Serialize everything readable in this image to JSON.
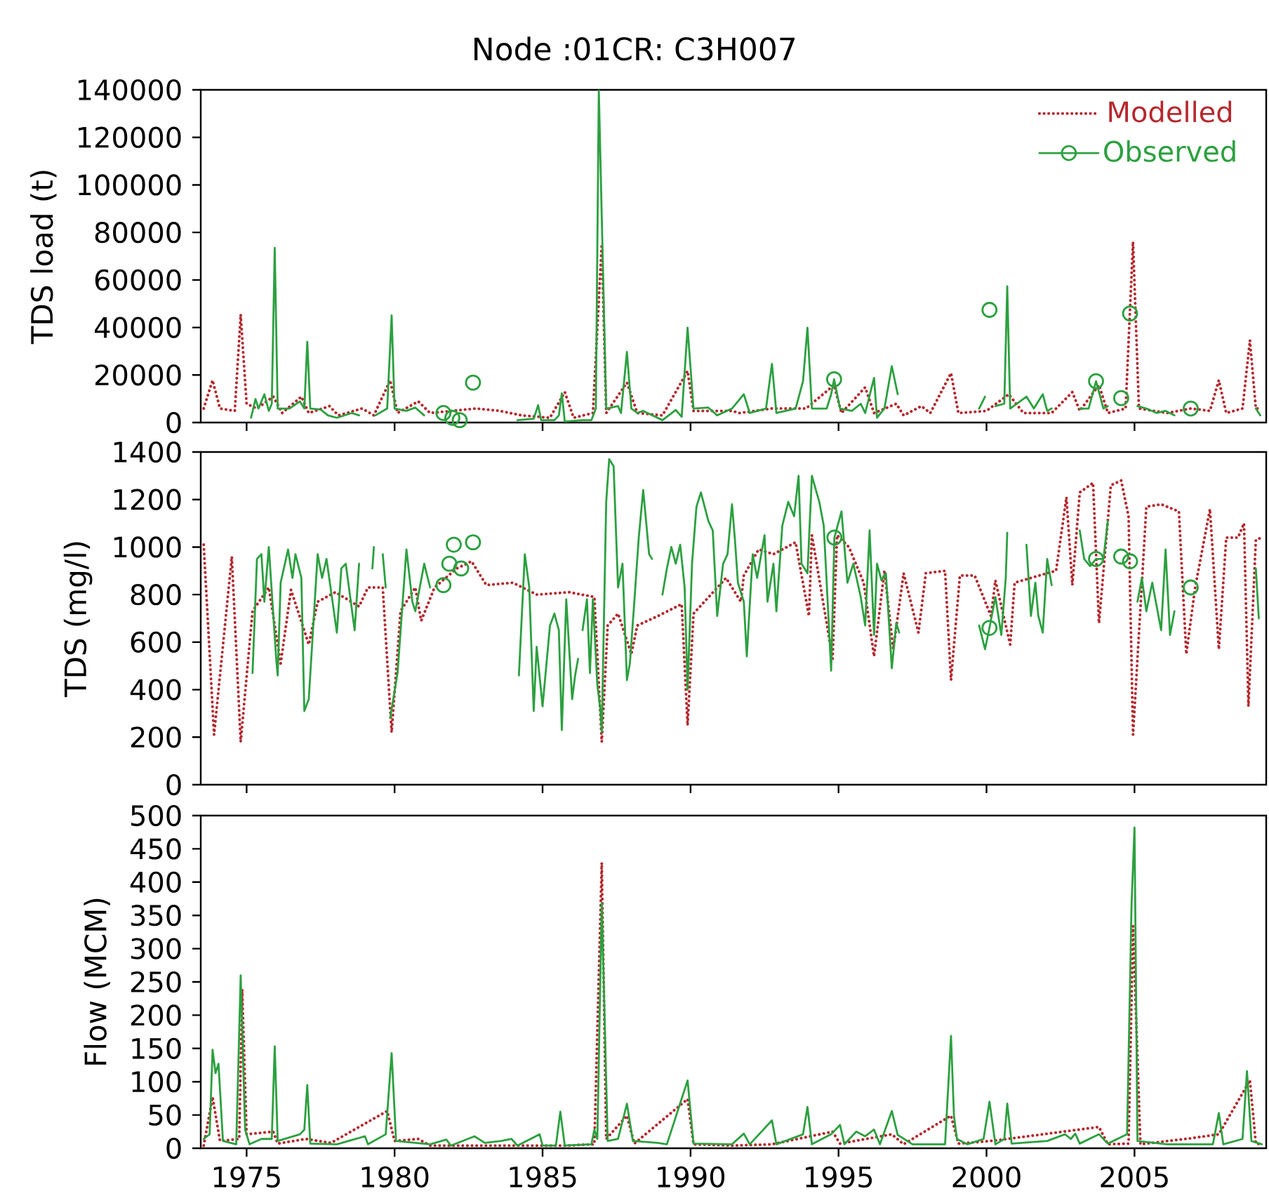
{
  "chart_data": [
    {
      "type": "line",
      "title": "Node :01CR: C3H007",
      "ylabel": "TDS load (t)",
      "xlim": [
        1973.45,
        2009.45
      ],
      "ylim": [
        0,
        140000
      ],
      "xticks": [
        1975,
        1980,
        1985,
        1990,
        1995,
        2000,
        2005
      ],
      "yticks": [
        0,
        20000,
        40000,
        60000,
        80000,
        100000,
        120000,
        140000
      ],
      "tick_labels": "y",
      "legend": "top right",
      "series": [
        {
          "name": "Modelled",
          "color": "#b5282e",
          "line_style": "dotted",
          "x": [
            1973.55,
            1973.85,
            1974.1,
            1974.6,
            1974.8,
            1975.0,
            1975.35,
            1975.9,
            1976.2,
            1976.85,
            1977.1,
            1977.8,
            1978.1,
            1978.9,
            1979.3,
            1979.85,
            1980.1,
            1980.8,
            1981.2,
            1982.75,
            1983.55,
            1984.3,
            1985.25,
            1985.75,
            1986.05,
            1986.7,
            1987.0,
            1987.15,
            1987.85,
            1988.2,
            1989.05,
            1989.9,
            1990.1,
            1991.4,
            1991.65,
            1992.75,
            1993.9,
            1994.85,
            1995.1,
            1995.9,
            1996.2,
            1996.95,
            1997.2,
            1997.8,
            1998.1,
            1998.8,
            1999.05,
            2000.0,
            2000.75,
            2001.25,
            2002.2,
            2002.9,
            2003.15,
            2003.8,
            2004.1,
            2004.7,
            2004.95,
            2005.15,
            2006.1,
            2006.9,
            2007.55,
            2007.85,
            2008.1,
            2008.65,
            2008.9,
            2009.1,
            2009.3
          ],
          "values": [
            5900,
            17800,
            5900,
            4900,
            45500,
            7900,
            5900,
            10900,
            4000,
            10900,
            4000,
            6900,
            3000,
            5900,
            3000,
            17800,
            4000,
            8900,
            4000,
            5900,
            4900,
            3000,
            2000,
            12800,
            2000,
            4000,
            75000,
            4000,
            16800,
            4000,
            3000,
            21700,
            4900,
            4900,
            4000,
            5900,
            5900,
            15800,
            4000,
            14800,
            4000,
            7900,
            3000,
            6900,
            4000,
            20800,
            4000,
            4900,
            11900,
            4000,
            4000,
            12800,
            4900,
            15800,
            4000,
            5900,
            76100,
            5900,
            4000,
            5900,
            4900,
            17800,
            4000,
            5900,
            34600,
            5900,
            5900
          ]
        },
        {
          "name": "Observed",
          "color": "#2ca040",
          "line_style": "solid",
          "x": [
            1975.15,
            1975.3,
            1975.4,
            1975.6,
            1975.75,
            1975.85,
            1975.95,
            1976.05,
            1976.45,
            1976.8,
            1976.95,
            1977.05,
            1977.15,
            1977.5,
            1977.75,
            1978.05,
            1978.55,
            1978.8,
            1979.1,
            1979.35,
            1979.75,
            1979.9,
            1980.0,
            1980.4,
            1980.7,
            1981.0,
            1981.3,
            1981.65,
            1981.8,
            1981.95,
            1982.07,
            1982.2,
            1982.45,
            1982.65,
            1983.5,
            1984.15,
            1984.7,
            1984.85,
            1984.95,
            1985.4,
            1985.55,
            1985.65,
            1985.75,
            1986.35,
            1986.65,
            1986.8,
            1986.9,
            1987.15,
            1987.55,
            1987.65,
            1987.85,
            1988.0,
            1988.2,
            1988.4,
            1989.05,
            1989.5,
            1989.7,
            1989.9,
            1990.1,
            1990.6,
            1990.9,
            1991.4,
            1991.8,
            1992.0,
            1992.55,
            1992.75,
            1992.9,
            1993.55,
            1993.8,
            1993.95,
            1994.1,
            1994.6,
            1994.75,
            1994.85,
            1995.05,
            1995.45,
            1995.75,
            1995.9,
            1996.2,
            1996.3,
            1996.55,
            1996.8,
            1997.0,
            1998.0,
            1999.75,
            1999.95,
            2000.02,
            2000.1,
            2000.2,
            2000.3,
            2000.6,
            2000.7,
            2000.8,
            2001.35,
            2001.6,
            2001.9,
            2002.05,
            2002.2,
            2002.7,
            2003.15,
            2003.45,
            2003.7,
            2003.95,
            2004.1,
            2004.3,
            2004.55,
            2004.7,
            2004.85,
            2004.97,
            2005.1,
            2005.4,
            2005.75,
            2006.05,
            2006.35,
            2006.6,
            2006.9,
            2008.0,
            2009.1,
            2009.25
          ],
          "values": [
            2000,
            9900,
            5900,
            11900,
            4900,
            7900,
            73500,
            5900,
            5900,
            8900,
            5900,
            34000,
            5900,
            5500,
            3000,
            2000,
            4000,
            3000,
            null,
            3000,
            5900,
            45100,
            5900,
            4900,
            6300,
            3000,
            null,
            null,
            null,
            null,
            null,
            null,
            null,
            null,
            null,
            1000,
            1600,
            7300,
            1000,
            1000,
            3000,
            12300,
            400,
            1000,
            1000,
            5900,
            140000,
            5900,
            6900,
            4000,
            29700,
            5900,
            4000,
            4900,
            1000,
            5300,
            2400,
            39900,
            5900,
            6300,
            3000,
            5900,
            11900,
            4000,
            5900,
            24700,
            4000,
            5900,
            17400,
            39900,
            5900,
            5900,
            11900,
            18200,
            5900,
            4900,
            7900,
            4000,
            18800,
            2000,
            5900,
            23700,
            11900,
            null,
            5900,
            10900,
            null,
            null,
            null,
            6900,
            7900,
            57300,
            5900,
            10900,
            5900,
            11900,
            4900,
            5900,
            null,
            5900,
            5900,
            17400,
            5900,
            6900,
            null,
            null,
            null,
            null,
            null,
            6900,
            5900,
            4000,
            4900,
            3000,
            null,
            null,
            null,
            5900,
            3000
          ]
        },
        {
          "type": "scatter",
          "color": "#2ca040",
          "marker": "circle",
          "x": [
            1981.65,
            1981.95,
            1982.2,
            1982.65,
            1994.85,
            2000.1,
            2003.7,
            2004.55,
            2004.85,
            2006.9
          ],
          "values": [
            4000,
            2000,
            1000,
            16800,
            18200,
            47400,
            17400,
            10300,
            45900,
            5900
          ]
        }
      ]
    },
    {
      "type": "line",
      "ylabel": "TDS (mg/l)",
      "xlim": [
        1973.45,
        2009.45
      ],
      "ylim": [
        0,
        1400
      ],
      "xticks": [
        1975,
        1980,
        1985,
        1990,
        1995,
        2000,
        2005
      ],
      "yticks": [
        0,
        200,
        400,
        600,
        800,
        1000,
        1200,
        1400
      ],
      "tick_labels": "y",
      "series": [
        {
          "color": "#b5282e",
          "line_style": "dotted",
          "x": [
            1973.55,
            1973.9,
            1974.5,
            1974.8,
            1975.2,
            1975.75,
            1976.15,
            1976.5,
            1977.1,
            1977.4,
            1978.0,
            1978.8,
            1979.1,
            1979.6,
            1979.9,
            1980.2,
            1980.7,
            1980.9,
            1981.35,
            1982.1,
            1982.6,
            1983.1,
            1984.0,
            1984.8,
            1985.9,
            1986.75,
            1987.0,
            1987.2,
            1987.55,
            1988.0,
            1988.2,
            1988.9,
            1989.7,
            1989.9,
            1990.1,
            1991.2,
            1991.7,
            1991.8,
            1992.3,
            1992.8,
            1993.55,
            1994.0,
            1994.1,
            1994.8,
            1994.95,
            1995.35,
            1995.85,
            1996.2,
            1996.55,
            1996.85,
            1997.2,
            1997.7,
            1997.95,
            1998.6,
            1998.8,
            1999.1,
            1999.6,
            2000.15,
            2000.3,
            2000.8,
            2000.95,
            2002.05,
            2002.35,
            2002.7,
            2002.9,
            2003.15,
            2003.6,
            2003.8,
            2004.2,
            2004.55,
            2004.8,
            2004.95,
            2005.4,
            2005.9,
            2006.5,
            2006.75,
            2007.05,
            2007.55,
            2007.85,
            2008.1,
            2008.5,
            2008.7,
            2008.85,
            2009.1,
            2009.3
          ],
          "values": [
            1010,
            210,
            960,
            180,
            730,
            830,
            510,
            820,
            590,
            770,
            810,
            750,
            830,
            830,
            220,
            730,
            830,
            690,
            830,
            910,
            940,
            840,
            850,
            800,
            810,
            790,
            180,
            670,
            720,
            550,
            670,
            710,
            760,
            250,
            720,
            870,
            770,
            880,
            990,
            970,
            1020,
            710,
            1050,
            530,
            1050,
            1000,
            850,
            540,
            900,
            570,
            890,
            640,
            890,
            900,
            440,
            880,
            880,
            710,
            860,
            590,
            850,
            890,
            900,
            1210,
            840,
            1230,
            1270,
            680,
            1260,
            1280,
            1130,
            210,
            1170,
            1180,
            1150,
            550,
            830,
            1160,
            570,
            1040,
            1040,
            1100,
            330,
            1030,
            1040
          ]
        },
        {
          "color": "#2ca040",
          "line_style": "solid",
          "x": [
            1975.2,
            1975.35,
            1975.5,
            1975.6,
            1975.75,
            1976.0,
            1976.05,
            1976.15,
            1976.4,
            1976.55,
            1976.65,
            1976.85,
            1976.95,
            1977.1,
            1977.4,
            1977.55,
            1977.7,
            1978.05,
            1978.2,
            1978.35,
            1978.65,
            1978.8,
            1979.0,
            1979.25,
            1979.3,
            1979.5,
            1979.6,
            1979.7,
            1979.78,
            1979.85,
            1980.1,
            1980.4,
            1980.6,
            1980.7,
            1981.0,
            1981.2,
            1981.4,
            1981.65,
            1981.75,
            1981.85,
            1981.92,
            1982.0,
            1982.12,
            1982.25,
            1982.45,
            1982.65,
            1983.0,
            1984.2,
            1984.4,
            1984.55,
            1984.7,
            1984.8,
            1985.0,
            1985.25,
            1985.4,
            1985.55,
            1985.65,
            1985.8,
            1986.0,
            1986.1,
            1986.2,
            1986.28,
            1986.35,
            1986.5,
            1986.6,
            1986.7,
            1986.85,
            1986.95,
            1987.0,
            1987.15,
            1987.25,
            1987.4,
            1987.55,
            1987.7,
            1987.85,
            1987.95,
            1988.1,
            1988.25,
            1988.4,
            1988.6,
            1988.7,
            1988.9,
            1989.05,
            1989.2,
            1989.35,
            1989.5,
            1989.65,
            1989.8,
            1989.9,
            1990.05,
            1990.2,
            1990.35,
            1990.6,
            1990.75,
            1990.9,
            1991.1,
            1991.25,
            1991.4,
            1991.5,
            1991.6,
            1991.8,
            1991.9,
            1992.1,
            1992.25,
            1992.5,
            1992.6,
            1992.8,
            1992.9,
            1993.1,
            1993.3,
            1993.5,
            1993.65,
            1993.75,
            1993.95,
            1994.1,
            1994.35,
            1994.5,
            1994.6,
            1994.75,
            1994.86,
            1995.1,
            1995.3,
            1995.5,
            1995.75,
            1995.9,
            1996.05,
            1996.2,
            1996.3,
            1996.45,
            1996.6,
            1996.8,
            1996.95,
            1997.05,
            1998.0,
            1999.75,
            1999.95,
            2000.1,
            2000.3,
            2000.5,
            2000.65,
            2000.7,
            2001.0,
            2001.35,
            2001.5,
            2001.65,
            2001.75,
            2001.9,
            2002.05,
            2002.2,
            2002.7,
            2003.15,
            2003.3,
            2003.5,
            2003.7,
            2003.95,
            2004.1,
            2004.3,
            2004.55,
            2004.7,
            2004.85,
            2004.97,
            2005.1,
            2005.25,
            2005.4,
            2005.6,
            2005.75,
            2005.9,
            2006.05,
            2006.2,
            2006.35,
            2006.6,
            2006.9,
            2008.0,
            2009.1,
            2009.2
          ],
          "values": [
            470,
            950,
            970,
            770,
            1000,
            530,
            460,
            850,
            990,
            870,
            970,
            870,
            310,
            360,
            970,
            870,
            950,
            640,
            910,
            930,
            650,
            930,
            null,
            910,
            1000,
            null,
            970,
            830,
            null,
            280,
            470,
            990,
            770,
            730,
            930,
            830,
            null,
            null,
            null,
            null,
            null,
            null,
            null,
            null,
            null,
            null,
            null,
            460,
            970,
            830,
            310,
            580,
            330,
            670,
            720,
            650,
            230,
            780,
            360,
            460,
            530,
            null,
            650,
            780,
            470,
            780,
            420,
            320,
            220,
            1190,
            1370,
            1340,
            830,
            930,
            440,
            510,
            770,
            1040,
            1240,
            970,
            950,
            null,
            800,
            910,
            1000,
            930,
            1010,
            830,
            400,
            930,
            1170,
            1230,
            1110,
            1070,
            710,
            930,
            970,
            1180,
            1030,
            850,
            770,
            540,
            970,
            870,
            1050,
            770,
            930,
            730,
            1090,
            1190,
            1130,
            1300,
            930,
            890,
            1300,
            1190,
            1090,
            850,
            480,
            1040,
            1150,
            850,
            930,
            790,
            670,
            1070,
            630,
            930,
            860,
            890,
            490,
            680,
            640,
            null,
            670,
            570,
            660,
            790,
            630,
            870,
            1060,
            null,
            1010,
            710,
            850,
            710,
            640,
            950,
            840,
            null,
            1070,
            950,
            920,
            950,
            950,
            1110,
            null,
            null,
            null,
            null,
            null,
            770,
            870,
            730,
            850,
            750,
            650,
            990,
            630,
            730,
            null,
            null,
            null,
            910,
            700
          ]
        },
        {
          "type": "scatter",
          "color": "#2ca040",
          "marker": "circle",
          "x": [
            1981.65,
            1981.85,
            1982.0,
            1982.25,
            1982.65,
            1994.86,
            2000.1,
            2003.7,
            2004.55,
            2004.85,
            2006.9
          ],
          "values": [
            840,
            930,
            1010,
            910,
            1020,
            1040,
            660,
            950,
            960,
            940,
            830
          ]
        }
      ]
    },
    {
      "type": "line",
      "ylabel": "Flow (MCM)",
      "xlim": [
        1973.45,
        2009.45
      ],
      "ylim": [
        0,
        500
      ],
      "xticks": [
        1975,
        1980,
        1985,
        1990,
        1995,
        2000,
        2005
      ],
      "yticks": [
        0,
        50,
        100,
        150,
        200,
        250,
        300,
        350,
        400,
        450,
        500
      ],
      "series": [
        {
          "color": "#b5282e",
          "line_style": "dotted",
          "x": [
            1973.55,
            1973.85,
            1974.1,
            1974.75,
            1974.85,
            1975.0,
            1975.9,
            1976.05,
            1977.0,
            1977.85,
            1979.75,
            1980.0,
            1980.8,
            1981.2,
            1982.75,
            1984.3,
            1985.75,
            1986.75,
            1987.0,
            1987.15,
            1987.85,
            1988.1,
            1989.9,
            1990.1,
            1991.4,
            1992.75,
            1994.8,
            1995.05,
            1996.8,
            1997.2,
            1998.8,
            1999.05,
            2000.15,
            2000.7,
            2003.8,
            2004.1,
            2004.8,
            2004.95,
            2005.2,
            2006.9,
            2007.85,
            2008.9,
            2009.1,
            2009.3
          ],
          "values": [
            4,
            77,
            11,
            14,
            239,
            21,
            25,
            7,
            14,
            8,
            56,
            11,
            14,
            4,
            4,
            4,
            4,
            6,
            429,
            14,
            49,
            7,
            74,
            6,
            4,
            6,
            25,
            7,
            21,
            6,
            49,
            7,
            11,
            14,
            32,
            6,
            7,
            334,
            6,
            15,
            21,
            102,
            7,
            6
          ]
        },
        {
          "color": "#2ca040",
          "line_style": "solid",
          "x": [
            1973.55,
            1973.75,
            1973.85,
            1973.95,
            1974.05,
            1974.2,
            1974.65,
            1974.8,
            1974.95,
            1975.1,
            1975.5,
            1975.85,
            1975.95,
            1976.05,
            1976.8,
            1976.95,
            1977.05,
            1977.15,
            1978.05,
            1979.0,
            1979.1,
            1979.7,
            1979.9,
            1980.05,
            1981.2,
            1981.75,
            1981.9,
            1982.7,
            1983.05,
            1983.6,
            1983.95,
            1984.15,
            1984.9,
            1985.0,
            1985.45,
            1985.6,
            1985.75,
            1986.65,
            1986.75,
            1986.85,
            1987.0,
            1987.2,
            1987.55,
            1987.85,
            1988.05,
            1988.9,
            1989.2,
            1989.9,
            1990.1,
            1991.4,
            1991.8,
            1992.0,
            1992.75,
            1992.9,
            1993.8,
            1993.95,
            1994.1,
            1994.75,
            1995.05,
            1995.2,
            1995.6,
            1995.9,
            1996.2,
            1996.4,
            1996.8,
            1997.0,
            1997.5,
            1998.6,
            1998.8,
            1998.9,
            1999.0,
            1999.35,
            1999.9,
            2000.1,
            2000.3,
            2000.6,
            2000.7,
            2000.85,
            2002.05,
            2002.65,
            2002.85,
            2003.0,
            2003.15,
            2003.8,
            2004.1,
            2004.75,
            2004.9,
            2005.0,
            2005.1,
            2006.1,
            2007.65,
            2007.85,
            2008.0,
            2008.65,
            2008.8,
            2008.95,
            2009.3
          ],
          "values": [
            14,
            21,
            148,
            113,
            127,
            11,
            6,
            260,
            28,
            6,
            14,
            14,
            153,
            11,
            21,
            28,
            95,
            7,
            6,
            18,
            6,
            21,
            143,
            11,
            6,
            13,
            4,
            18,
            8,
            11,
            14,
            4,
            21,
            4,
            4,
            55,
            4,
            6,
            28,
            14,
            369,
            11,
            14,
            67,
            11,
            8,
            6,
            102,
            7,
            6,
            22,
            6,
            42,
            6,
            21,
            62,
            6,
            21,
            35,
            6,
            25,
            18,
            28,
            6,
            56,
            20,
            6,
            6,
            169,
            49,
            14,
            6,
            14,
            70,
            6,
            14,
            67,
            7,
            11,
            21,
            14,
            22,
            7,
            21,
            7,
            21,
            366,
            482,
            11,
            6,
            6,
            53,
            6,
            14,
            116,
            11,
            6
          ]
        }
      ]
    }
  ]
}
